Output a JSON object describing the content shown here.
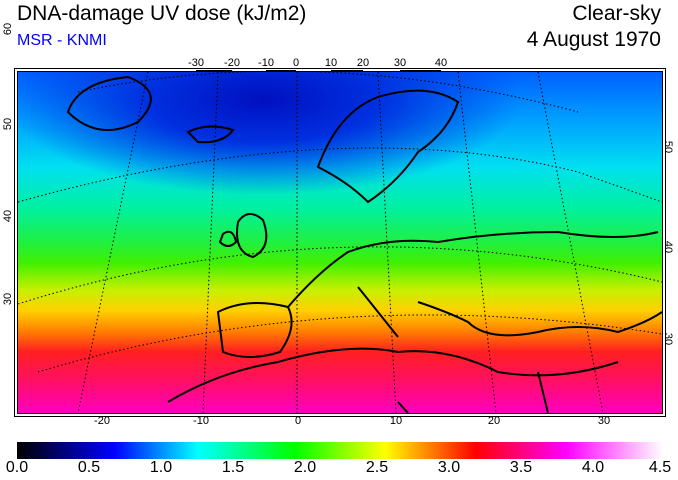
{
  "header": {
    "title": "DNA-damage UV dose (kJ/m2)",
    "source": "MSR - KNMI",
    "condition": "Clear-sky",
    "date": "4 August 1970"
  },
  "map": {
    "top_lon_labels": [
      "-30",
      "-20",
      "-10",
      "0",
      "10",
      "20",
      "30",
      "40"
    ],
    "bottom_lon_labels": [
      "-20",
      "-10",
      "0",
      "10",
      "20",
      "30"
    ],
    "left_lat_labels": [
      "60",
      "50",
      "40",
      "30"
    ],
    "right_lat_labels": [
      "50",
      "40",
      "30"
    ]
  },
  "colorbar": {
    "labels": [
      "0.0",
      "0.5",
      "1.0",
      "1.5",
      "2.0",
      "2.5",
      "3.0",
      "3.5",
      "4.0",
      "4.5"
    ],
    "range": [
      0.0,
      4.5
    ],
    "colors": [
      "#000000",
      "#0000ff",
      "#00ffff",
      "#00ff00",
      "#ffff00",
      "#ff0000",
      "#ff00ff",
      "#ffffff"
    ]
  }
}
